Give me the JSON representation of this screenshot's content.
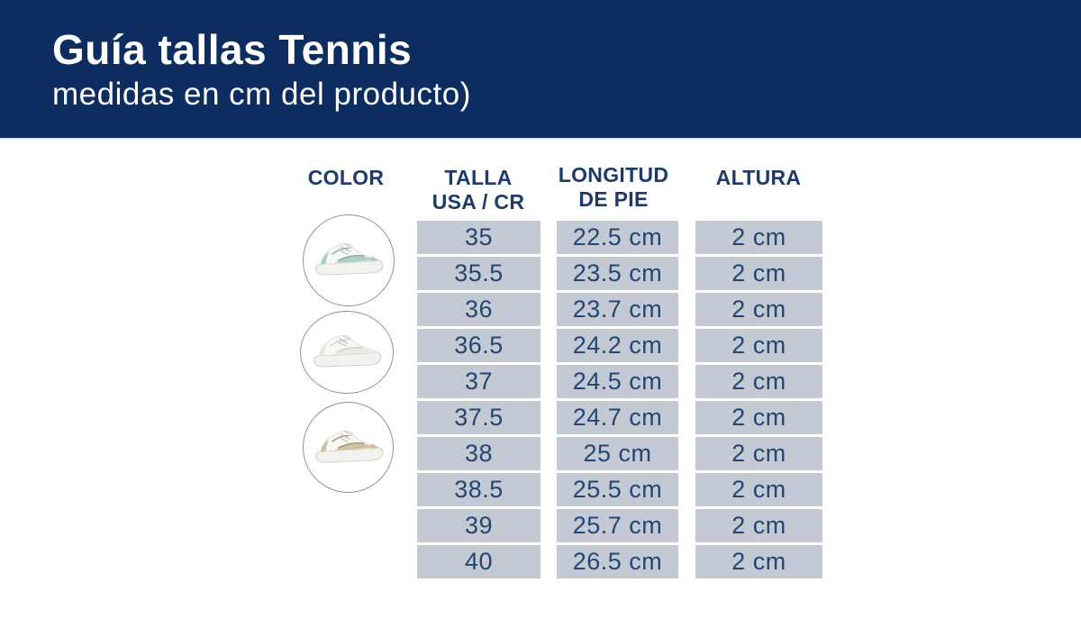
{
  "page": {
    "title": "Guía tallas Tennis",
    "subtitle": "medidas en cm del producto)"
  },
  "table": {
    "headers": {
      "color": "COLOR",
      "talla_line1": "TALLA",
      "talla_line2": "USA / CR",
      "longitud_line1": "LONGITUD",
      "longitud_line2": "DE PIE",
      "altura": "ALTURA"
    },
    "rows": [
      {
        "talla": "35",
        "longitud": "22.5 cm",
        "altura": "2 cm"
      },
      {
        "talla": "35.5",
        "longitud": "23.5 cm",
        "altura": "2 cm"
      },
      {
        "talla": "36",
        "longitud": "23.7 cm",
        "altura": "2 cm"
      },
      {
        "talla": "36.5",
        "longitud": "24.2 cm",
        "altura": "2 cm"
      },
      {
        "talla": "37",
        "longitud": "24.5 cm",
        "altura": "2 cm"
      },
      {
        "talla": "37.5",
        "longitud": "24.7 cm",
        "altura": "2 cm"
      },
      {
        "talla": "38",
        "longitud": "25 cm",
        "altura": "2 cm"
      },
      {
        "talla": "38.5",
        "longitud": "25.5 cm",
        "altura": "2 cm"
      },
      {
        "talla": "39",
        "longitud": "25.7 cm",
        "altura": "2 cm"
      },
      {
        "talla": "40",
        "longitud": "26.5 cm",
        "altura": "2 cm"
      }
    ],
    "shoes": [
      {
        "icon": "sneaker-white-teal-icon",
        "accent": "#aecdc6",
        "accent_dark": "#7ba79d"
      },
      {
        "icon": "sneaker-white-icon",
        "accent": "#e9e9e5",
        "accent_dark": "#cfcfca"
      },
      {
        "icon": "sneaker-white-gold-icon",
        "accent": "#cfc0a0",
        "accent_dark": "#a08c63"
      }
    ]
  },
  "colors": {
    "header-bg": "#0d2c5f",
    "header-text": "#ffffff",
    "column-header-text": "#1d3a6c",
    "cell-bg": "#c4cad3",
    "cell-text": "#234673",
    "circle-border": "#8f949c",
    "page-bg": "#ffffff"
  }
}
